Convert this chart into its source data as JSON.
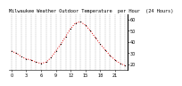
{
  "title": "Milwaukee Weather Outdoor Temperature  per Hour  (24 Hours)",
  "hours": [
    0,
    1,
    2,
    3,
    4,
    5,
    6,
    7,
    8,
    9,
    10,
    11,
    12,
    13,
    14,
    15,
    16,
    17,
    18,
    19,
    20,
    21,
    22,
    23
  ],
  "temps": [
    32,
    30,
    27,
    25,
    24,
    22,
    21,
    22,
    26,
    32,
    38,
    45,
    52,
    57,
    58,
    55,
    50,
    44,
    38,
    33,
    28,
    24,
    21,
    19
  ],
  "line_color": "#dd0000",
  "marker_color": "#000000",
  "bg_color": "#ffffff",
  "plot_bg": "#ffffff",
  "grid_color": "#777777",
  "ylim": [
    15,
    65
  ],
  "ytick_values": [
    20,
    30,
    40,
    50,
    60
  ],
  "ytick_labels": [
    "20",
    "30",
    "40",
    "50",
    "60"
  ],
  "xtick_values": [
    0,
    3,
    6,
    9,
    12,
    15,
    18,
    21
  ],
  "xtick_labels": [
    "0",
    "3",
    "6",
    "9",
    "12",
    "15",
    "18",
    "21"
  ],
  "ylabel_fontsize": 3.5,
  "xlabel_fontsize": 3.5,
  "title_fontsize": 3.8,
  "linewidth": 0.7,
  "markersize": 1.2
}
